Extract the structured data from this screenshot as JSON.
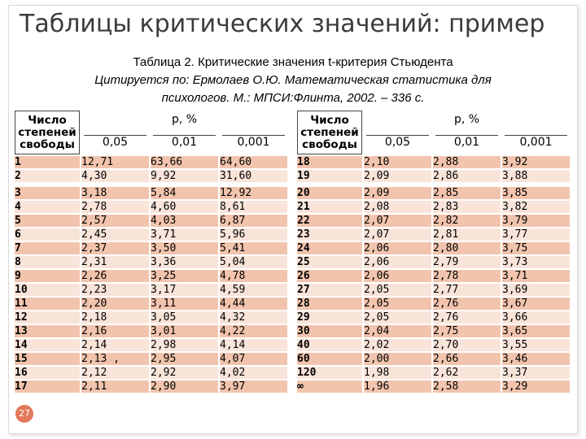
{
  "slide": {
    "title": "Таблицы критических значений: пример",
    "page_number": "27"
  },
  "caption": {
    "line1": "Таблица 2. Критические значения t-критерия Стьюдента",
    "line2": "Цитируется по: Ермолаев О.Ю. Математическая статистика для",
    "line3": "психологов. М.: МПСИ:Флинта, 2002. – 336 с."
  },
  "table": {
    "df_header": [
      "Число",
      "степеней",
      "свободы"
    ],
    "p_header": "p, %",
    "levels": [
      "0,05",
      "0,01",
      "0,001"
    ],
    "left_rows": [
      [
        "1",
        "12,71",
        "63,66",
        "64,60"
      ],
      [
        "2",
        "4,30",
        "9,92",
        "31,60"
      ],
      [
        "3",
        "3,18",
        "5,84",
        "12,92"
      ],
      [
        "4",
        "2,78",
        "4,60",
        "8,61"
      ],
      [
        "5",
        "2,57",
        "4,03",
        "6,87"
      ],
      [
        "6",
        "2,45",
        "3,71",
        "5,96"
      ],
      [
        "7",
        "2,37",
        "3,50",
        "5,41"
      ],
      [
        "8",
        "2,31",
        "3,36",
        "5,04"
      ],
      [
        "9",
        "2,26",
        "3,25",
        "4,78"
      ],
      [
        "10",
        "2,23",
        "3,17",
        "4,59"
      ],
      [
        "11",
        "2,20",
        "3,11",
        "4,44"
      ],
      [
        "12",
        "2,18",
        "3,05",
        "4,32"
      ],
      [
        "13",
        "2,16",
        "3,01",
        "4,22"
      ],
      [
        "14",
        "2,14",
        "2,98",
        "4,14"
      ],
      [
        "15",
        "2,13 ,",
        "2,95",
        "4,07"
      ],
      [
        "16",
        "2,12",
        "2,92",
        "4,02"
      ],
      [
        "17",
        "2,11",
        "2,90",
        "3,97"
      ]
    ],
    "right_rows": [
      [
        "18",
        "2,10",
        "2,88",
        "3,92"
      ],
      [
        "19",
        "2,09",
        "2,86",
        "3,88"
      ],
      [
        "20",
        "2,09",
        "2,85",
        "3,85"
      ],
      [
        "21",
        "2,08",
        "2,83",
        "3,82"
      ],
      [
        "22",
        "2,07",
        "2,82",
        "3,79"
      ],
      [
        "23",
        "2,07",
        "2,81",
        "3,77"
      ],
      [
        "24",
        "2,06",
        "2,80",
        "3,75"
      ],
      [
        "25",
        "2,06",
        "2,79",
        "3,73"
      ],
      [
        "26",
        "2,06",
        "2,78",
        "3,71"
      ],
      [
        "27",
        "2,05",
        "2,77",
        "3,69"
      ],
      [
        "28",
        "2,05",
        "2,76",
        "3,67"
      ],
      [
        "29",
        "2,05",
        "2,76",
        "3,66"
      ],
      [
        "30",
        "2,04",
        "2,75",
        "3,65"
      ],
      [
        "40",
        "2,02",
        "2,70",
        "3,55"
      ],
      [
        "60",
        "2,00",
        "2,66",
        "3,46"
      ],
      [
        "120",
        "1,98",
        "2,62",
        "3,37"
      ],
      [
        "∞",
        "1,96",
        "2,58",
        "3,29"
      ]
    ]
  }
}
